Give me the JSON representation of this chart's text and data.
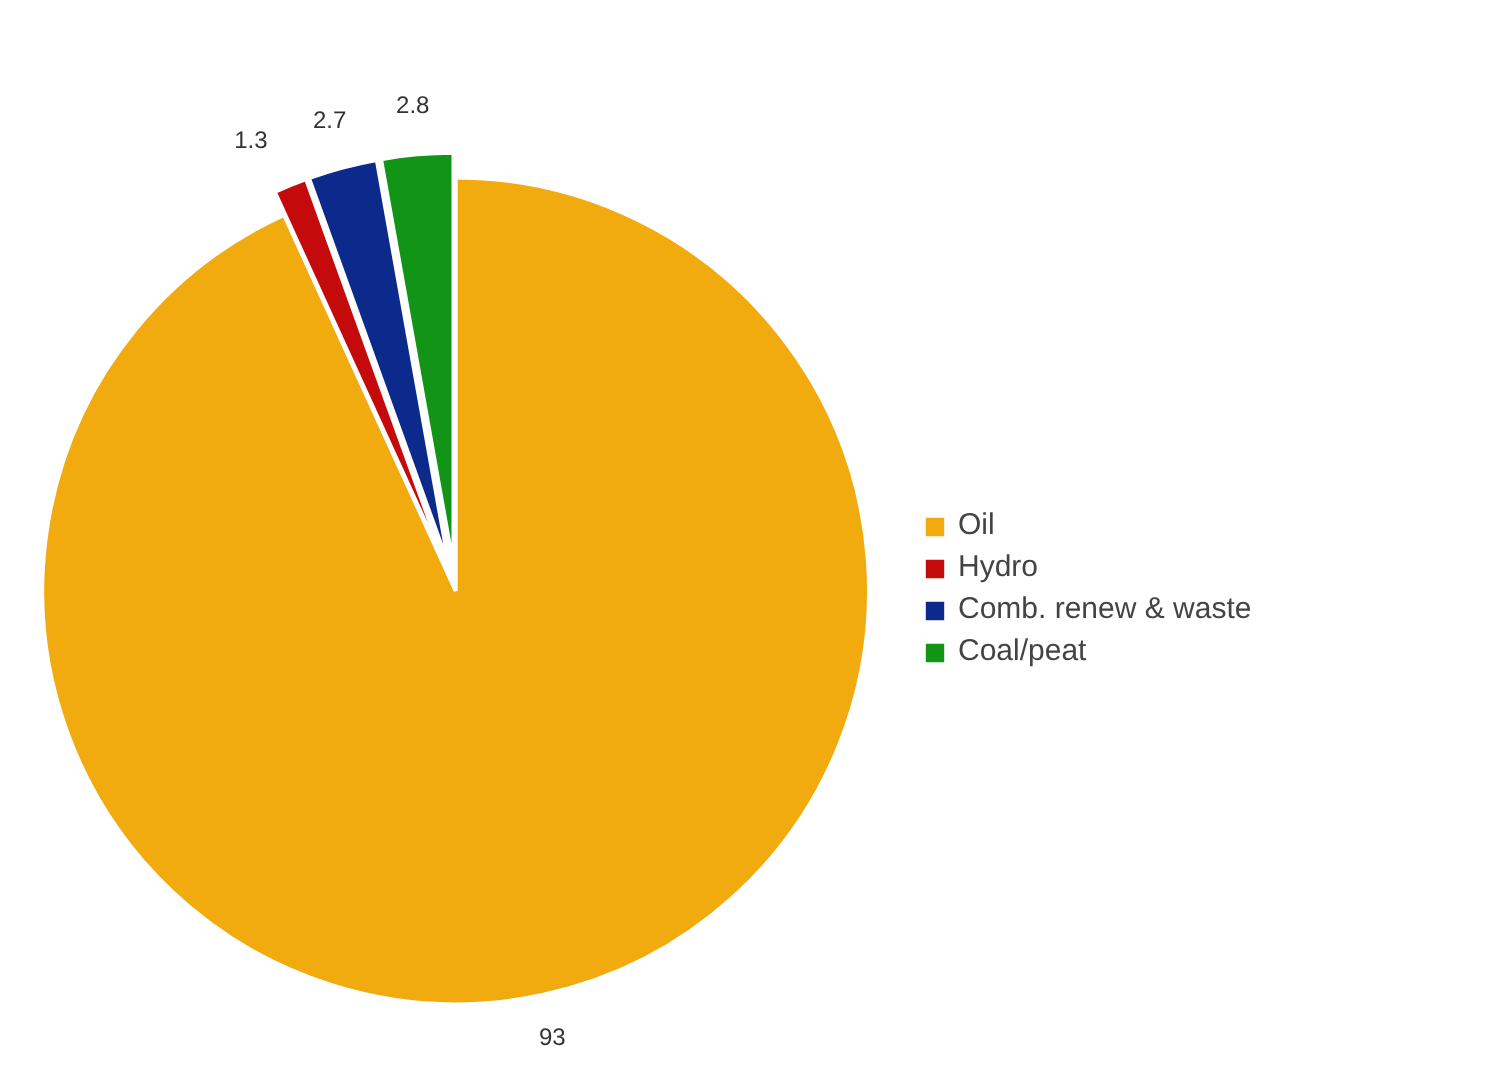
{
  "chart_data": {
    "type": "pie",
    "categories": [
      "Oil",
      "Hydro",
      "Comb. renew & waste",
      "Coal/peat"
    ],
    "values": [
      93,
      1.3,
      2.7,
      2.8
    ],
    "colors": [
      "#f2ab0f",
      "#c40a0a",
      "#0c2a8c",
      "#129417"
    ],
    "data_labels": true,
    "legend": "right"
  }
}
